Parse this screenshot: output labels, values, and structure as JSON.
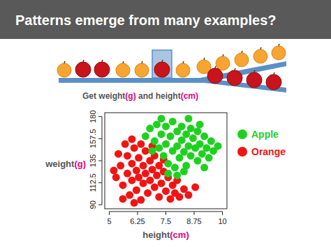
{
  "chart_data": {
    "type": "scatter",
    "title": "Patterns emerge from many examples?",
    "annotation": [
      "Get weight",
      "(g)",
      " and height",
      "(cm)"
    ],
    "x_label": [
      "height",
      "(cm)"
    ],
    "y_label": [
      "weight",
      "(g)"
    ],
    "xlim": [
      4.8,
      10.2
    ],
    "ylim": [
      86,
      184
    ],
    "xticks": [
      5,
      6.25,
      7.5,
      8.75,
      10
    ],
    "yticks": [
      90,
      112.5,
      135,
      157.5,
      180
    ],
    "grid": false,
    "legend": "right",
    "marker": "circle",
    "series": [
      {
        "name": "Apple",
        "color": "#1fd11f",
        "x": [
          6.6,
          6.8,
          7.0,
          7.1,
          7.2,
          7.3,
          7.4,
          7.5,
          7.5,
          7.6,
          7.7,
          7.8,
          7.8,
          7.9,
          8.0,
          8.0,
          8.1,
          8.2,
          8.2,
          8.3,
          8.4,
          8.4,
          8.5,
          8.6,
          8.6,
          8.7,
          8.8,
          8.9,
          8.9,
          9.0,
          9.1,
          9.2,
          9.3,
          9.4,
          9.5,
          9.6,
          7.3,
          8.5,
          9.0,
          6.9,
          7.6,
          8.3,
          9.8,
          9.2,
          8.0
        ],
        "values": [
          160,
          168,
          155,
          172,
          148,
          162,
          140,
          170,
          152,
          132,
          160,
          145,
          175,
          128,
          165,
          150,
          138,
          170,
          156,
          144,
          162,
          130,
          150,
          168,
          140,
          158,
          148,
          135,
          165,
          152,
          142,
          160,
          148,
          138,
          155,
          145,
          178,
          178,
          172,
          145,
          122,
          124,
          150,
          128,
          120
        ]
      },
      {
        "name": "Orange",
        "color": "#f21313",
        "x": [
          5.3,
          5.5,
          5.6,
          5.8,
          5.8,
          5.9,
          6.0,
          6.0,
          6.1,
          6.2,
          6.2,
          6.3,
          6.3,
          6.4,
          6.5,
          6.5,
          6.6,
          6.6,
          6.7,
          6.8,
          6.8,
          6.9,
          7.0,
          7.0,
          7.1,
          7.2,
          7.2,
          7.3,
          7.4,
          7.5,
          7.6,
          7.7,
          7.8,
          7.9,
          8.0,
          8.1,
          8.3,
          8.5,
          5.4,
          5.7,
          6.0,
          6.4,
          5.2,
          6.9,
          7.4,
          5.6,
          6.1,
          8.8
        ],
        "values": [
          118,
          130,
          110,
          140,
          122,
          100,
          132,
          115,
          148,
          125,
          105,
          138,
          118,
          95,
          130,
          112,
          145,
          122,
          102,
          135,
          115,
          126,
          108,
          140,
          120,
          98,
          130,
          112,
          124,
          104,
          118,
          96,
          110,
          102,
          115,
          98,
          106,
          100,
          142,
          152,
          157,
          152,
          125,
          150,
          136,
          96,
          92,
          108
        ]
      }
    ]
  }
}
